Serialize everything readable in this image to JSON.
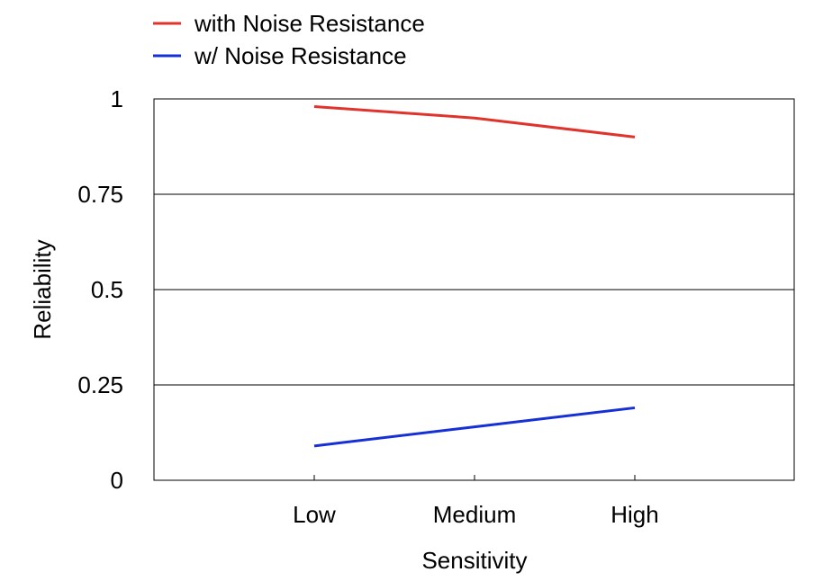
{
  "chart_data": {
    "type": "line",
    "title": "",
    "xlabel": "Sensitivity",
    "ylabel": "Reliability",
    "categories": [
      "Low",
      "Medium",
      "High"
    ],
    "ylim": [
      0,
      1
    ],
    "yticks": [
      0,
      0.25,
      0.5,
      0.75,
      1
    ],
    "ytick_labels": [
      "0",
      "0.25",
      "0.5",
      "0.75",
      "1"
    ],
    "grid": true,
    "legend_position": "top-left, above plot",
    "series": [
      {
        "name": "with Noise Resistance",
        "color": "#e0332b",
        "values": [
          0.98,
          0.95,
          0.9
        ]
      },
      {
        "name": "w/ Noise Resistance",
        "color": "#1530d6",
        "values": [
          0.09,
          0.14,
          0.19
        ]
      }
    ]
  }
}
